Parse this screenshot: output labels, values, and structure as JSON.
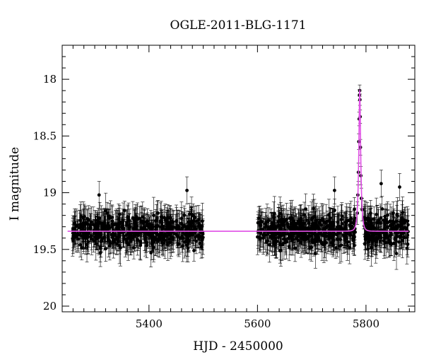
{
  "chart_data": {
    "type": "scatter",
    "title": "OGLE-2011-BLG-1171",
    "xlabel": "HJD - 2450000",
    "ylabel": "I magnitude",
    "xlim": [
      5240,
      5890
    ],
    "ylim": [
      17.7,
      20.05
    ],
    "y_inverted": true,
    "grid": false,
    "x_ticks": [
      5400,
      5600,
      5800
    ],
    "y_ticks": [
      18,
      18.5,
      19,
      19.5,
      20
    ],
    "x_tick_labels": [
      "5400",
      "5600",
      "5800"
    ],
    "y_tick_labels": [
      "18",
      "18.5",
      "19",
      "19.5",
      "20"
    ],
    "x_minor_step": 20,
    "y_minor_step": 0.1,
    "point_color": "#000000",
    "model_color": "#e14ee6",
    "baseline_magnitude": 19.34,
    "peak": {
      "hjd": 5788.5,
      "magnitude": 18.1
    },
    "season_ranges": [
      [
        5258,
        5500
      ],
      [
        5600,
        5878
      ]
    ],
    "highlighted_points": [
      {
        "x": 5788.0,
        "y": 18.14,
        "err": 0.05
      },
      {
        "x": 5788.4,
        "y": 18.1,
        "err": 0.05
      },
      {
        "x": 5788.8,
        "y": 18.18,
        "err": 0.05
      },
      {
        "x": 5787.4,
        "y": 18.35,
        "err": 0.06
      },
      {
        "x": 5789.3,
        "y": 18.33,
        "err": 0.06
      },
      {
        "x": 5786.8,
        "y": 18.55,
        "err": 0.07
      },
      {
        "x": 5789.8,
        "y": 18.6,
        "err": 0.07
      },
      {
        "x": 5786.0,
        "y": 18.82,
        "err": 0.08
      },
      {
        "x": 5790.5,
        "y": 18.85,
        "err": 0.08
      },
      {
        "x": 5785.0,
        "y": 19.02,
        "err": 0.09
      },
      {
        "x": 5791.5,
        "y": 19.05,
        "err": 0.09
      },
      {
        "x": 5793.0,
        "y": 19.15,
        "err": 0.1
      },
      {
        "x": 5784.0,
        "y": 19.18,
        "err": 0.1
      },
      {
        "x": 5796.0,
        "y": 19.22,
        "err": 0.1
      },
      {
        "x": 5862.0,
        "y": 18.95,
        "err": 0.12
      },
      {
        "x": 5828.0,
        "y": 18.92,
        "err": 0.12
      },
      {
        "x": 5742.0,
        "y": 18.98,
        "err": 0.12
      },
      {
        "x": 5470.0,
        "y": 18.98,
        "err": 0.12
      },
      {
        "x": 5308.0,
        "y": 19.02,
        "err": 0.12
      }
    ]
  }
}
